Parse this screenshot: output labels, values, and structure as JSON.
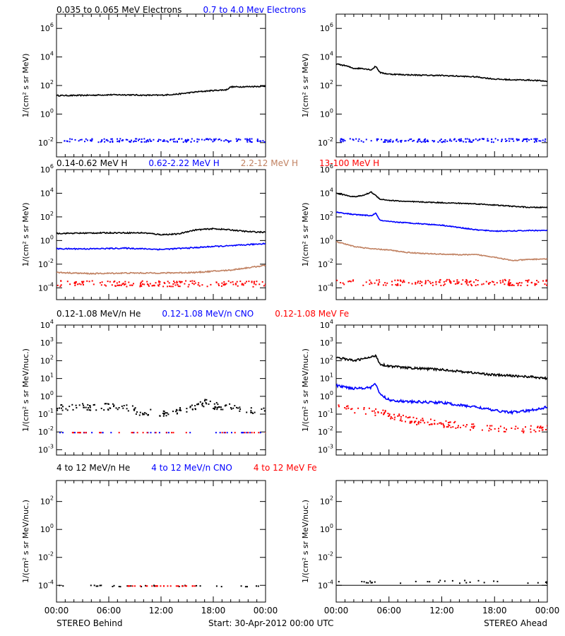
{
  "footer": {
    "left_label": "STEREO Behind",
    "center_label": "Start: 30-Apr-2012 00:00 UTC",
    "right_label": "STEREO Ahead"
  },
  "colors": {
    "black": "#000000",
    "blue": "#0000ff",
    "tan": "#c08060",
    "red": "#ff0000"
  },
  "chart_data": [
    {
      "type": "scatter",
      "id": "electrons-behind",
      "panel": "STEREO Behind",
      "title_parts": [
        {
          "text": "0.035 to 0.065 MeV Electrons",
          "color": "#000000"
        },
        {
          "text": "0.7 to 4.0 Mev Electrons",
          "color": "#0000ff"
        }
      ],
      "ylabel": "1/(cm² s sr MeV)",
      "yscale": "log",
      "yticks": [
        -2,
        0,
        2,
        4,
        6
      ],
      "ylim_log10": [
        -3,
        7
      ],
      "xlim_hours": [
        0,
        24
      ],
      "series": [
        {
          "color": "#000000",
          "x": [
            0,
            2,
            4,
            6,
            8,
            10,
            12,
            14,
            16,
            18,
            19.5,
            20,
            22,
            24
          ],
          "y_log10": [
            1.3,
            1.3,
            1.32,
            1.35,
            1.35,
            1.32,
            1.32,
            1.4,
            1.55,
            1.65,
            1.7,
            1.9,
            1.92,
            1.95
          ],
          "noise": 0.04,
          "style": "line"
        },
        {
          "color": "#0000ff",
          "x": [
            0,
            24
          ],
          "y_log10": [
            -1.8,
            -1.8
          ],
          "noise": 0.12,
          "style": "dots"
        }
      ]
    },
    {
      "type": "scatter",
      "id": "electrons-ahead",
      "panel": "STEREO Ahead",
      "title_parts": [],
      "ylabel": "1/(cm² s sr MeV)",
      "yscale": "log",
      "yticks": [
        -2,
        0,
        2,
        4,
        6
      ],
      "ylim_log10": [
        -3,
        7
      ],
      "xlim_hours": [
        0,
        24
      ],
      "series": [
        {
          "color": "#000000",
          "x": [
            0,
            1,
            2,
            3,
            4,
            4.5,
            5,
            5.5,
            6,
            8,
            10,
            12,
            14,
            16,
            18,
            20,
            22,
            24
          ],
          "y_log10": [
            3.5,
            3.4,
            3.2,
            3.2,
            3.1,
            3.35,
            2.9,
            2.85,
            2.8,
            2.75,
            2.72,
            2.7,
            2.65,
            2.6,
            2.45,
            2.4,
            2.38,
            2.3
          ],
          "noise": 0.04,
          "style": "line"
        },
        {
          "color": "#0000ff",
          "x": [
            0,
            24
          ],
          "y_log10": [
            -1.8,
            -1.8
          ],
          "noise": 0.12,
          "style": "dots"
        }
      ]
    },
    {
      "type": "scatter",
      "id": "protons-behind",
      "panel": "STEREO Behind",
      "title_parts": [
        {
          "text": "0.14-0.62 MeV H",
          "color": "#000000"
        },
        {
          "text": "0.62-2.22 MeV H",
          "color": "#0000ff"
        },
        {
          "text": "2.2-12 MeV H",
          "color": "#c08060"
        },
        {
          "text": "13-100 MeV H",
          "color": "#ff0000"
        }
      ],
      "ylabel": "1/(cm² s sr MeV)",
      "yscale": "log",
      "yticks": [
        -4,
        -2,
        0,
        2,
        4,
        6
      ],
      "ylim_log10": [
        -5,
        6
      ],
      "xlim_hours": [
        0,
        24
      ],
      "series": [
        {
          "color": "#000000",
          "x": [
            0,
            6,
            10,
            12,
            14,
            15,
            16,
            18,
            20,
            22,
            24
          ],
          "y_log10": [
            0.6,
            0.65,
            0.65,
            0.5,
            0.55,
            0.75,
            0.9,
            1.0,
            0.9,
            0.75,
            0.7
          ],
          "noise": 0.05,
          "style": "line"
        },
        {
          "color": "#0000ff",
          "x": [
            0,
            4,
            8,
            12,
            16,
            18,
            20,
            22,
            24
          ],
          "y_log10": [
            -0.7,
            -0.7,
            -0.65,
            -0.75,
            -0.6,
            -0.5,
            -0.45,
            -0.35,
            -0.25
          ],
          "noise": 0.05,
          "style": "line"
        },
        {
          "color": "#c08060",
          "x": [
            0,
            4,
            8,
            12,
            16,
            18,
            20,
            22,
            24
          ],
          "y_log10": [
            -2.7,
            -2.8,
            -2.75,
            -2.75,
            -2.7,
            -2.6,
            -2.5,
            -2.3,
            -2.1
          ],
          "noise": 0.05,
          "style": "line"
        },
        {
          "color": "#ff0000",
          "x": [
            0,
            24
          ],
          "y_log10": [
            -3.6,
            -3.6
          ],
          "noise": 0.25,
          "style": "dots"
        }
      ]
    },
    {
      "type": "scatter",
      "id": "protons-ahead",
      "panel": "STEREO Ahead",
      "title_parts": [],
      "ylabel": "1/(cm² s sr MeV)",
      "yscale": "log",
      "yticks": [
        -4,
        -2,
        0,
        2,
        4,
        6
      ],
      "ylim_log10": [
        -5,
        6
      ],
      "xlim_hours": [
        0,
        24
      ],
      "series": [
        {
          "color": "#000000",
          "x": [
            0,
            2,
            3,
            4,
            4.5,
            5,
            6,
            8,
            12,
            16,
            18,
            20,
            22,
            24
          ],
          "y_log10": [
            4.0,
            3.7,
            3.8,
            4.1,
            3.8,
            3.5,
            3.4,
            3.3,
            3.2,
            3.1,
            3.0,
            2.9,
            2.8,
            2.8
          ],
          "noise": 0.04,
          "style": "line"
        },
        {
          "color": "#0000ff",
          "x": [
            0,
            2,
            4,
            4.5,
            5,
            6,
            8,
            12,
            14,
            16,
            18,
            20,
            22,
            24
          ],
          "y_log10": [
            2.4,
            2.2,
            2.1,
            2.3,
            1.7,
            1.6,
            1.5,
            1.3,
            1.1,
            0.9,
            0.8,
            0.8,
            0.85,
            0.85
          ],
          "noise": 0.04,
          "style": "line"
        },
        {
          "color": "#c08060",
          "x": [
            0,
            2,
            4,
            6,
            8,
            10,
            12,
            14,
            16,
            18,
            20,
            22,
            24
          ],
          "y_log10": [
            -0.1,
            -0.5,
            -0.7,
            -0.8,
            -1.0,
            -1.1,
            -1.15,
            -1.2,
            -1.2,
            -1.4,
            -1.7,
            -1.6,
            -1.55
          ],
          "noise": 0.04,
          "style": "line"
        },
        {
          "color": "#ff0000",
          "x": [
            0,
            24
          ],
          "y_log10": [
            -3.5,
            -3.5
          ],
          "noise": 0.25,
          "style": "dots"
        }
      ]
    },
    {
      "type": "scatter",
      "id": "heavy-behind",
      "panel": "STEREO Behind",
      "title_parts": [
        {
          "text": "0.12-1.08 MeV/n He",
          "color": "#000000"
        },
        {
          "text": "0.12-1.08 MeV/n CNO",
          "color": "#0000ff"
        },
        {
          "text": "0.12-1.08 MeV Fe",
          "color": "#ff0000"
        }
      ],
      "ylabel": "1/(cm² s sr MeV/nuc.)",
      "yscale": "log",
      "yticks": [
        -3,
        -2,
        -1,
        0,
        1,
        2,
        3,
        4
      ],
      "ylim_log10": [
        -3.3,
        4
      ],
      "xlim_hours": [
        0,
        24
      ],
      "series": [
        {
          "color": "#000000",
          "x": [
            0,
            4,
            8,
            10,
            12,
            14,
            16,
            17,
            18,
            20,
            22,
            24
          ],
          "y_log10": [
            -0.6,
            -0.55,
            -0.6,
            -0.9,
            -0.9,
            -0.8,
            -0.5,
            -0.3,
            -0.5,
            -0.6,
            -0.7,
            -0.8
          ],
          "noise": 0.2,
          "style": "dots"
        },
        {
          "color": "#0000ff",
          "x": [
            0,
            24
          ],
          "y_log10": [
            -2.0,
            -2.0
          ],
          "noise": 0.0,
          "style": "sparse"
        },
        {
          "color": "#ff0000",
          "x": [
            0,
            24
          ],
          "y_log10": [
            -2.0,
            -2.0
          ],
          "noise": 0.0,
          "style": "sparse"
        }
      ]
    },
    {
      "type": "scatter",
      "id": "heavy-ahead",
      "panel": "STEREO Ahead",
      "title_parts": [],
      "ylabel": "1/(cm² s sr MeV/nuc.)",
      "yscale": "log",
      "yticks": [
        -3,
        -2,
        -1,
        0,
        1,
        2,
        3,
        4
      ],
      "ylim_log10": [
        -3.3,
        4
      ],
      "xlim_hours": [
        0,
        24
      ],
      "series": [
        {
          "color": "#000000",
          "x": [
            0,
            2,
            4,
            4.5,
            5,
            6,
            8,
            12,
            14,
            16,
            18,
            20,
            22,
            24
          ],
          "y_log10": [
            2.2,
            2.0,
            2.2,
            2.3,
            1.8,
            1.7,
            1.6,
            1.5,
            1.4,
            1.3,
            1.2,
            1.15,
            1.1,
            1.0
          ],
          "noise": 0.06,
          "style": "line"
        },
        {
          "color": "#0000ff",
          "x": [
            0,
            2,
            4,
            4.5,
            5,
            6,
            8,
            12,
            14,
            16,
            18,
            20,
            22,
            24
          ],
          "y_log10": [
            0.6,
            0.45,
            0.5,
            0.7,
            0.1,
            -0.2,
            -0.3,
            -0.35,
            -0.5,
            -0.6,
            -0.8,
            -0.9,
            -0.8,
            -0.6
          ],
          "noise": 0.07,
          "style": "line"
        },
        {
          "color": "#ff0000",
          "x": [
            0,
            2,
            4,
            6,
            8,
            12,
            16,
            20,
            24
          ],
          "y_log10": [
            -0.6,
            -0.7,
            -0.8,
            -1.0,
            -1.3,
            -1.5,
            -1.7,
            -1.8,
            -1.8
          ],
          "noise": 0.2,
          "style": "dots"
        }
      ]
    },
    {
      "type": "scatter",
      "id": "high-energy-behind",
      "panel": "STEREO Behind",
      "title_parts": [
        {
          "text": "4 to 12 MeV/n He",
          "color": "#000000"
        },
        {
          "text": "4 to 12 MeV/n CNO",
          "color": "#0000ff"
        },
        {
          "text": "4 to 12 MeV Fe",
          "color": "#ff0000"
        }
      ],
      "ylabel": "1/(cm² s sr MeV/nuc.)",
      "yscale": "log",
      "yticks": [
        -4,
        -2,
        0,
        2
      ],
      "ylim_log10": [
        -5.2,
        3.5
      ],
      "xlim_hours": [
        0,
        24
      ],
      "series": [
        {
          "color": "#000000",
          "x": [
            0,
            24
          ],
          "y_log10": [
            -4.0,
            -4.0
          ],
          "noise": 0.05,
          "style": "sparse"
        },
        {
          "color": "#ff0000",
          "x": [
            8,
            16
          ],
          "y_log10": [
            -4.0,
            -4.0
          ],
          "noise": 0.0,
          "style": "sparse"
        }
      ]
    },
    {
      "type": "scatter",
      "id": "high-energy-ahead",
      "panel": "STEREO Ahead",
      "title_parts": [],
      "ylabel": "1/(cm² s sr MeV/nuc.)",
      "yscale": "log",
      "yticks": [
        -4,
        -2,
        0,
        2
      ],
      "ylim_log10": [
        -5.2,
        3.5
      ],
      "xlim_hours": [
        0,
        24
      ],
      "series": [
        {
          "color": "#000000",
          "x": [
            0,
            24
          ],
          "y_log10": [
            -4.0,
            -4.0
          ],
          "noise": 0.0,
          "style": "line-thin"
        },
        {
          "color": "#000000",
          "x": [
            0,
            24
          ],
          "y_log10": [
            -3.7,
            -3.7
          ],
          "noise": 0.1,
          "style": "sparse"
        }
      ]
    }
  ],
  "xaxis": {
    "ticks": [
      0,
      6,
      12,
      18,
      24
    ],
    "tick_labels": [
      "00:00",
      "06:00",
      "12:00",
      "18:00",
      "00:00"
    ]
  }
}
